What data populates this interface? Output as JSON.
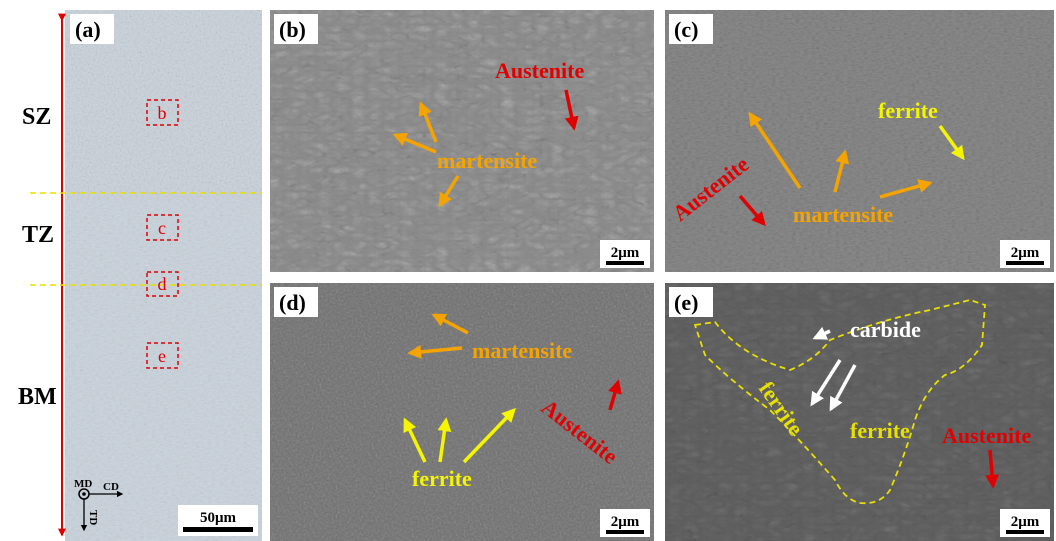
{
  "panel_a": {
    "label": "(a)",
    "zones": [
      "SZ",
      "TZ",
      "BM"
    ],
    "boxes": [
      "b",
      "c",
      "d",
      "e"
    ],
    "directions": [
      "MD",
      "CD",
      "TD"
    ],
    "scale_bar": "50μm"
  },
  "panel_b": {
    "label": "(b)",
    "annotations": [
      "Austenite",
      "martensite"
    ],
    "scale_bar": "2μm"
  },
  "panel_c": {
    "label": "(c)",
    "annotations": [
      "ferrite",
      "Austenite",
      "martensite"
    ],
    "scale_bar": "2μm"
  },
  "panel_d": {
    "label": "(d)",
    "annotations": [
      "martensite",
      "ferrite",
      "Austenite"
    ],
    "scale_bar": "2μm"
  },
  "panel_e": {
    "label": "(e)",
    "annotations": [
      "carbide",
      "ferrite",
      "ferrite",
      "Austenite"
    ],
    "scale_bar": "2μm"
  }
}
